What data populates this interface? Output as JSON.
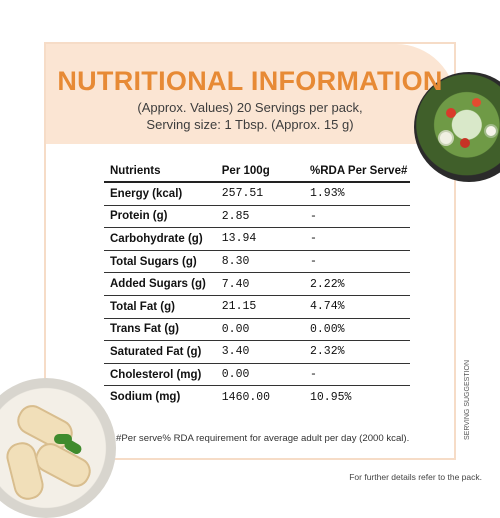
{
  "title": "NUTRITIONAL INFORMATION",
  "subtitle_line1": "(Approx. Values) 20 Servings per pack,",
  "subtitle_line2": "Serving size: 1 Tbsp. (Approx. 15 g)",
  "table": {
    "headers": [
      "Nutrients",
      "Per 100g",
      "%RDA Per Serve#"
    ],
    "rows": [
      {
        "nutrient": "Energy (kcal)",
        "per100g": "257.51",
        "rda": "1.93%"
      },
      {
        "nutrient": "Protein (g)",
        "per100g": "2.85",
        "rda": "-"
      },
      {
        "nutrient": "Carbohydrate (g)",
        "per100g": "13.94",
        "rda": "-"
      },
      {
        "nutrient": "Total Sugars (g)",
        "per100g": "8.30",
        "rda": "-"
      },
      {
        "nutrient": "Added Sugars (g)",
        "per100g": "7.40",
        "rda": "2.22%"
      },
      {
        "nutrient": "Total Fat (g)",
        "per100g": "21.15",
        "rda": "4.74%"
      },
      {
        "nutrient": "Trans Fat (g)",
        "per100g": "0.00",
        "rda": "0.00%"
      },
      {
        "nutrient": "Saturated Fat (g)",
        "per100g": "3.40",
        "rda": "2.32%"
      },
      {
        "nutrient": "Cholesterol (mg)",
        "per100g": "0.00",
        "rda": "-"
      },
      {
        "nutrient": "Sodium (mg)",
        "per100g": "1460.00",
        "rda": "10.95%"
      }
    ]
  },
  "footnote": "#Per serve% RDA requirement for average adult per day (2000 kcal).",
  "bottom_note": "For further details refer to the pack.",
  "side_label": "SERVING SUGGESTION",
  "colors": {
    "accent": "#e78a35",
    "band": "#fbe5d3",
    "frame": "#f6dcc7"
  }
}
